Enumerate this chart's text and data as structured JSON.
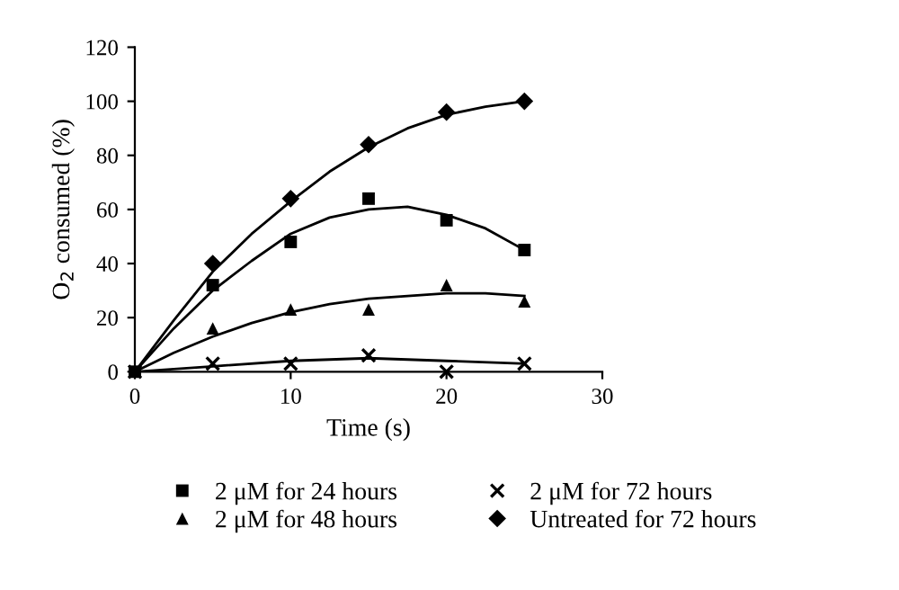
{
  "chart_data": {
    "type": "scatter",
    "xlabel": "Time (s)",
    "ylabel": "O$_{2}$ consumed (%)",
    "xlim": [
      0,
      30
    ],
    "ylim": [
      0,
      120
    ],
    "xticks": [
      0,
      10,
      20,
      30
    ],
    "yticks": [
      0,
      20,
      40,
      60,
      80,
      100,
      120
    ],
    "grid": false,
    "legend": "bottom",
    "series": [
      {
        "name": "2 μM for 24 hours",
        "color": "#000000",
        "marker": "square",
        "x": [
          0,
          5,
          10,
          15,
          20,
          25
        ],
        "values": [
          0,
          32,
          48,
          64,
          56,
          45
        ]
      },
      {
        "name": "2 μM for 48 hours",
        "color": "#000000",
        "marker": "triangle",
        "x": [
          5,
          10,
          15,
          20,
          25
        ],
        "values": [
          16,
          23,
          23,
          32,
          26
        ]
      },
      {
        "name": "2 μM for 72 hours",
        "color": "#000000",
        "marker": "cross",
        "x": [
          0,
          5,
          10,
          15,
          20,
          25
        ],
        "values": [
          0,
          3,
          3,
          6,
          0,
          3
        ]
      },
      {
        "name": "Untreated for 72 hours",
        "color": "#000000",
        "marker": "diamond",
        "x": [
          5,
          10,
          15,
          20,
          25
        ],
        "values": [
          40,
          64,
          84,
          96,
          100
        ]
      },
      {
        "type": "line",
        "color": "#000000",
        "line_style": "solid",
        "x": [
          0,
          2.5,
          5,
          7.5,
          10,
          12.5,
          15,
          17.5,
          20,
          22.5,
          25
        ],
        "values": [
          0,
          16,
          30,
          41,
          51,
          57,
          60,
          61,
          58,
          53,
          45
        ]
      },
      {
        "type": "line",
        "color": "#000000",
        "line_style": "solid",
        "x": [
          0,
          2.5,
          5,
          7.5,
          10,
          12.5,
          15,
          17.5,
          20,
          22.5,
          25
        ],
        "values": [
          0,
          7,
          13,
          18,
          22,
          25,
          27,
          28,
          29,
          29,
          28
        ]
      },
      {
        "type": "line",
        "color": "#000000",
        "line_style": "solid",
        "x": [
          0,
          5,
          10,
          15,
          20,
          25
        ],
        "values": [
          0,
          2,
          4,
          5,
          4,
          3
        ]
      },
      {
        "type": "line",
        "color": "#000000",
        "line_style": "solid",
        "x": [
          0,
          2.5,
          5,
          7.5,
          10,
          12.5,
          15,
          17.5,
          20,
          22.5,
          25
        ],
        "values": [
          0,
          19,
          37,
          51,
          63,
          74,
          83,
          90,
          95,
          98,
          100
        ]
      }
    ]
  }
}
